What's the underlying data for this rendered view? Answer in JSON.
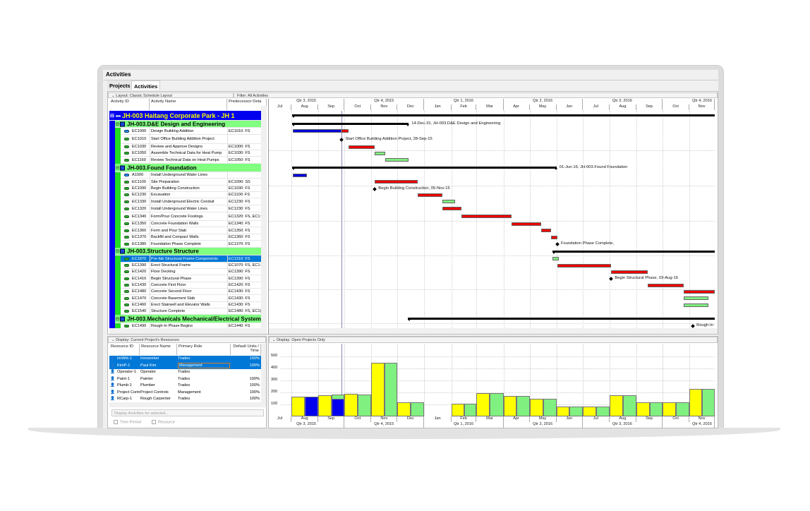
{
  "window": {
    "title": "Activities",
    "tabs": [
      "Projects",
      "Activities"
    ],
    "active_tab": "Activities"
  },
  "activities_panel": {
    "layout_label": "Layout: Classic Schedule Layout",
    "filter_label": "Filter: All Activities",
    "columns": [
      "Activity ID",
      "Activity Name",
      "Predecessor Deta"
    ],
    "rows": [
      {
        "type": "project",
        "name": "JH-003  Haitang Corporate Park - JH 1"
      },
      {
        "type": "wbs",
        "name": "JH-003.D&E  Design and Engineering"
      },
      {
        "type": "act",
        "id": "EC1000",
        "name": "Design Building Addition",
        "pred": "EC1010: FS",
        "icon": "blue"
      },
      {
        "type": "act",
        "id": "EC1010",
        "name": "Start Office Building Addition Project",
        "pred": ""
      },
      {
        "type": "act",
        "id": "EC1030",
        "name": "Review and Approve Designs",
        "pred": "EC1000: FS"
      },
      {
        "type": "act",
        "id": "EC1050",
        "name": "Assemble Technical Data for Heat Pump",
        "pred": "EC1030: FS"
      },
      {
        "type": "act",
        "id": "EC1160",
        "name": "Review Technical Data on Heat Pumps",
        "pred": "EC1050: FS"
      },
      {
        "type": "wbs",
        "name": "JH-003.Found  Foundation"
      },
      {
        "type": "act",
        "id": "A1000",
        "name": "Install Underground Water Lines",
        "pred": "",
        "icon": "blue"
      },
      {
        "type": "act",
        "id": "EC1100",
        "name": "Site Preparation",
        "pred": "EC1090: SS"
      },
      {
        "type": "act",
        "id": "EC1090",
        "name": "Begin Building Construction",
        "pred": "EC1030: FS"
      },
      {
        "type": "act",
        "id": "EC1230",
        "name": "Excavation",
        "pred": "EC1100: FS"
      },
      {
        "type": "act",
        "id": "EC1330",
        "name": "Install Underground Electric Conduit",
        "pred": "EC1230: FS"
      },
      {
        "type": "act",
        "id": "EC1320",
        "name": "Install Underground Water Lines",
        "pred": "EC1230: FS"
      },
      {
        "type": "act",
        "id": "EC1340",
        "name": "Form/Pour Concrete Footings",
        "pred": "EC1320: FS, EC1:"
      },
      {
        "type": "act",
        "id": "EC1350",
        "name": "Concrete Foundation Walls",
        "pred": "EC1340: FS"
      },
      {
        "type": "act",
        "id": "EC1360",
        "name": "Form and Pour Slab",
        "pred": "EC1350: FS"
      },
      {
        "type": "act",
        "id": "EC1370",
        "name": "Backfill and Compact Walls",
        "pred": "EC1360: FS"
      },
      {
        "type": "act",
        "id": "EC1380",
        "name": "Foundation Phase Complete",
        "pred": "EC1370: FS"
      },
      {
        "type": "wbs",
        "name": "JH-003.Structure  Structure"
      },
      {
        "type": "act",
        "id": "EC1870",
        "name": "Pre-fab Structural Frame Components",
        "pred": "EC1310: FS",
        "selected": true
      },
      {
        "type": "act",
        "id": "EC1390",
        "name": "Erect Structural Frame",
        "pred": "EC1070: FS, EC1:"
      },
      {
        "type": "act",
        "id": "EC1420",
        "name": "Floor Decking",
        "pred": "EC1390: FS"
      },
      {
        "type": "act",
        "id": "EC1410",
        "name": "Begin Structural Phase",
        "pred": "EC1390: FS"
      },
      {
        "type": "act",
        "id": "EC1430",
        "name": "Concrete First Floor",
        "pred": "EC1420: FS"
      },
      {
        "type": "act",
        "id": "EC1480",
        "name": "Concrete Second Floor",
        "pred": "EC1430: FS"
      },
      {
        "type": "act",
        "id": "EC1470",
        "name": "Concrete Basement Slab",
        "pred": "EC1430: FS"
      },
      {
        "type": "act",
        "id": "EC1460",
        "name": "Erect Stairwell and Elevator Walls",
        "pred": "EC1430: FS"
      },
      {
        "type": "act",
        "id": "EC1540",
        "name": "Structure Complete",
        "pred": "EC1480: FS, EC1("
      },
      {
        "type": "wbs",
        "name": "JH-003.Mechanicals  Mechanical/Electrical Systems"
      },
      {
        "type": "act",
        "id": "EC1490",
        "name": "Rough-In Phase Begins",
        "pred": "EC1440: FS"
      }
    ]
  },
  "timeline": {
    "quarters": [
      "Qtr 3, 2015",
      "Qtr 4, 2015",
      "Qtr 1, 2016",
      "Qtr 2, 2016",
      "Qtr 3, 2016",
      "Qtr 4, 2016"
    ],
    "months": [
      "Jul",
      "Aug",
      "Sep",
      "Oct",
      "Nov",
      "Dec",
      "Jan",
      "Feb",
      "Mar",
      "Apr",
      "May",
      "Jun",
      "Jul",
      "Aug",
      "Sep",
      "Oct",
      "Nov"
    ]
  },
  "gantt": {
    "colors": {
      "critical": "#ee0000",
      "normal": "#80ee80",
      "actual": "#0000dd",
      "summary": "#000000"
    },
    "items": [
      {
        "row": 0,
        "kind": "summary",
        "start": "2015-08-02",
        "end": "2016-12-31"
      },
      {
        "row": 1,
        "kind": "summary",
        "start": "2015-08-02",
        "end": "2015-12-14",
        "label": "14-Dec-15, JH-003.D&E  Design and Engineering"
      },
      {
        "row": 2,
        "kind": "actual",
        "start": "2015-08-03",
        "end": "2015-09-28"
      },
      {
        "row": 2,
        "kind": "critical",
        "start": "2015-09-28",
        "end": "2015-10-06"
      },
      {
        "row": 3,
        "kind": "milestone",
        "start": "2015-09-28",
        "label": "Start Office Building Addition Project, 28-Sep-15"
      },
      {
        "row": 4,
        "kind": "critical",
        "start": "2015-10-06",
        "end": "2015-11-05"
      },
      {
        "row": 5,
        "kind": "normal",
        "start": "2015-11-05",
        "end": "2015-11-17"
      },
      {
        "row": 6,
        "kind": "normal",
        "start": "2015-11-17",
        "end": "2015-12-14"
      },
      {
        "row": 7,
        "kind": "summary",
        "start": "2015-08-02",
        "end": "2016-06-01",
        "label": "01-Jun-16, JH-003.Found  Foundation"
      },
      {
        "row": 8,
        "kind": "actual",
        "start": "2015-08-03",
        "end": "2015-08-19"
      },
      {
        "row": 9,
        "kind": "critical",
        "start": "2015-11-05",
        "end": "2015-12-24"
      },
      {
        "row": 10,
        "kind": "milestone",
        "start": "2015-11-05",
        "label": "Begin Building Construction, 05-Nov-15"
      },
      {
        "row": 11,
        "kind": "critical",
        "start": "2015-12-24",
        "end": "2016-01-22"
      },
      {
        "row": 12,
        "kind": "normal",
        "start": "2016-01-22",
        "end": "2016-02-05"
      },
      {
        "row": 13,
        "kind": "critical",
        "start": "2016-01-22",
        "end": "2016-02-13"
      },
      {
        "row": 14,
        "kind": "critical",
        "start": "2016-02-13",
        "end": "2016-04-10"
      },
      {
        "row": 15,
        "kind": "critical",
        "start": "2016-04-10",
        "end": "2016-05-14"
      },
      {
        "row": 16,
        "kind": "critical",
        "start": "2016-05-14",
        "end": "2016-05-26"
      },
      {
        "row": 17,
        "kind": "critical",
        "start": "2016-05-26",
        "end": "2016-06-02"
      },
      {
        "row": 18,
        "kind": "milestone",
        "start": "2016-06-02",
        "label": "Foundation Phase Complete,"
      },
      {
        "row": 19,
        "kind": "summary",
        "start": "2016-05-27",
        "end": "2016-12-31"
      },
      {
        "row": 20,
        "kind": "normal",
        "start": "2016-05-27",
        "end": "2016-06-04"
      },
      {
        "row": 21,
        "kind": "critical",
        "start": "2016-06-02",
        "end": "2016-08-03"
      },
      {
        "row": 22,
        "kind": "critical",
        "start": "2016-08-03",
        "end": "2016-09-14"
      },
      {
        "row": 23,
        "kind": "milestone",
        "start": "2016-08-03",
        "label": "Begin Structural Phase, 03-Aug-16"
      },
      {
        "row": 24,
        "kind": "critical",
        "start": "2016-09-14",
        "end": "2016-10-25"
      },
      {
        "row": 25,
        "kind": "critical",
        "start": "2016-10-25",
        "end": "2016-12-31"
      },
      {
        "row": 26,
        "kind": "normal",
        "start": "2016-10-25",
        "end": "2016-11-23"
      },
      {
        "row": 27,
        "kind": "normal",
        "start": "2016-10-25",
        "end": "2016-11-23"
      },
      {
        "row": 29,
        "kind": "summary",
        "start": "2015-12-13",
        "end": "2016-12-31"
      },
      {
        "row": 30,
        "kind": "milestone",
        "start": "2016-11-05",
        "label": "Rough-In"
      }
    ],
    "data_date": "2015-09-28"
  },
  "resources_panel": {
    "display_label": "Display: Current Project's Resources",
    "columns": [
      "Resource ID",
      "Resource Name",
      "Primary Role",
      "Default Units / Time"
    ],
    "rows": [
      {
        "id": "ImWrk-1",
        "name": "Ironworker",
        "role": "Trades",
        "units": "100%",
        "selected": true
      },
      {
        "id": "KimP-1",
        "name": "Paul Kim",
        "role": "Management",
        "units": "100%",
        "selected": true
      },
      {
        "id": "Operator-1",
        "name": "Operator",
        "role": "Trades",
        "units": ""
      },
      {
        "id": "Paint-1",
        "name": "Painter",
        "role": "Trades",
        "units": "100%"
      },
      {
        "id": "Plumb-1",
        "name": "Plumber",
        "role": "Trades",
        "units": "100%"
      },
      {
        "id": "Project Contr",
        "name": "Project Controls",
        "role": "Management",
        "units": "100%"
      },
      {
        "id": "RCarp-1",
        "name": "Rough Carpenter",
        "role": "Trades",
        "units": "100%"
      }
    ],
    "display_activities_button": "Display Activities for selected...",
    "checkbox_time_period": "Time Period",
    "checkbox_resource": "Resource"
  },
  "chart_data": {
    "type": "bar",
    "display_label": "Display: Open Projects Only",
    "categories": [
      "Jul",
      "Aug",
      "Sep",
      "Oct",
      "Nov",
      "Dec",
      "Jan",
      "Feb",
      "Mar",
      "Apr",
      "May",
      "Jun",
      "Jul",
      "Aug",
      "Sep",
      "Oct",
      "Nov"
    ],
    "ylim": [
      0,
      560
    ],
    "yticks": [
      100,
      200,
      300,
      400,
      500
    ],
    "series": [
      {
        "color": "#ffff00",
        "values": [
          0,
          165,
          175,
          190,
          450,
          120,
          0,
          105,
          195,
          170,
          150,
          85,
          80,
          175,
          120,
          115,
          230
        ]
      },
      {
        "color": "#80f080",
        "values": [
          0,
          165,
          180,
          180,
          450,
          120,
          0,
          105,
          195,
          170,
          150,
          85,
          80,
          175,
          120,
          115,
          230
        ]
      },
      {
        "color": "#0000ee",
        "values": [
          0,
          165,
          150,
          0,
          0,
          0,
          0,
          0,
          0,
          0,
          0,
          0,
          0,
          0,
          0,
          0,
          0
        ]
      }
    ]
  }
}
